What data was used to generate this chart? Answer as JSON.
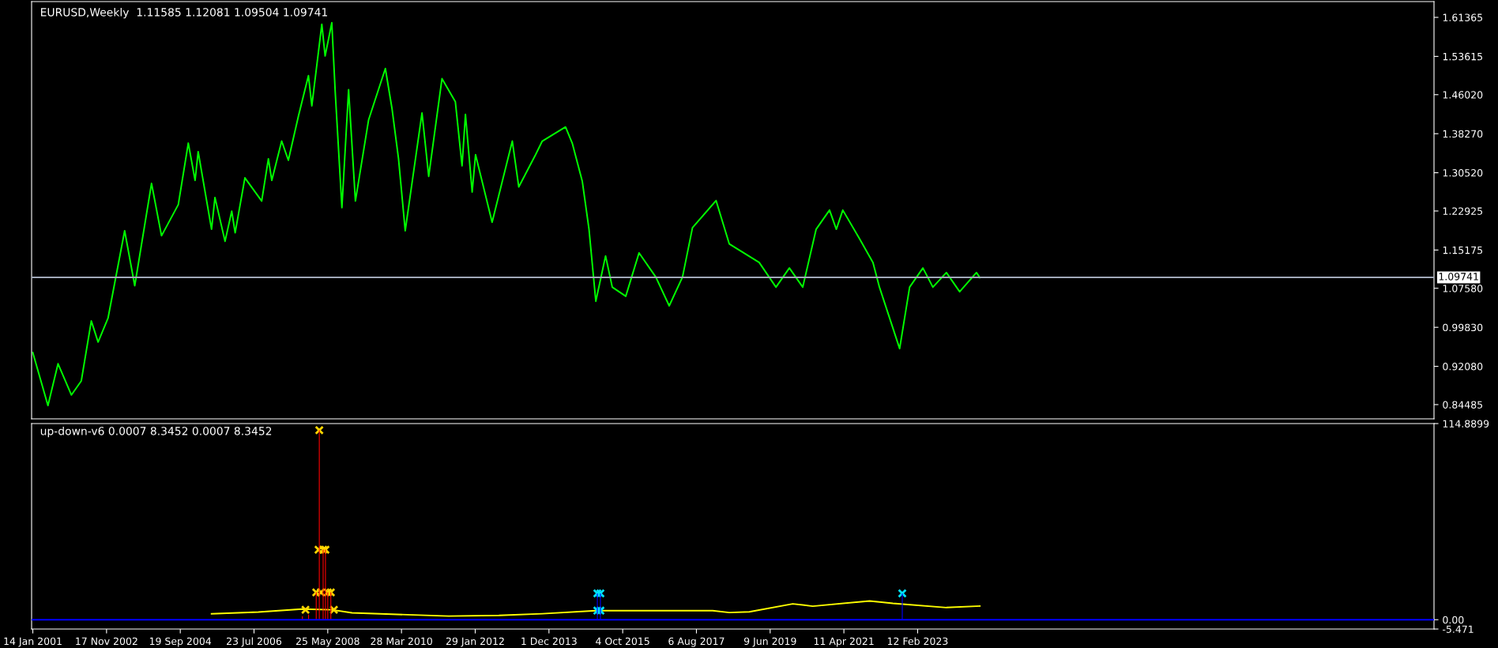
{
  "chart_data": [
    {
      "type": "line",
      "title": "EURUSD,Weekly  1.11585 1.12081 1.09504 1.09741",
      "xlim": [
        "2001-01-03",
        "2036-01-01"
      ],
      "ylim": [
        0.8166,
        1.645
      ],
      "yticks": [
        {
          "value": 1.61365,
          "label": "1.61365"
        },
        {
          "value": 1.53615,
          "label": "1.53615"
        },
        {
          "value": 1.4602,
          "label": "1.46020"
        },
        {
          "value": 1.3827,
          "label": "1.38270"
        },
        {
          "value": 1.3052,
          "label": "1.30520"
        },
        {
          "value": 1.22925,
          "label": "1.22925"
        },
        {
          "value": 1.15175,
          "label": "1.15175"
        },
        {
          "value": 1.0758,
          "label": "1.07580"
        },
        {
          "value": 0.9983,
          "label": "0.99830"
        },
        {
          "value": 0.9208,
          "label": "0.92080"
        },
        {
          "value": 0.84485,
          "label": "0.84485"
        }
      ],
      "tick_labels": "y",
      "grid": false,
      "legend": false,
      "ref_lines": [
        {
          "axis": "y",
          "value": 1.09741,
          "label": "1.09741",
          "color": "#a0a8b8"
        }
      ],
      "series": [
        {
          "color": "#00ff00",
          "x": [
            "2001-01-14",
            "2001-06",
            "2001-09",
            "2002-01",
            "2002-04",
            "2002-07",
            "2002-09",
            "2002-12",
            "2003-05",
            "2003-08",
            "2004-01",
            "2004-04",
            "2004-09",
            "2004-12",
            "2005-02",
            "2005-03",
            "2005-07",
            "2005-08",
            "2005-11",
            "2006-01",
            "2006-02",
            "2006-05",
            "2006-10",
            "2006-12",
            "2007-01",
            "2007-04",
            "2007-06",
            "2007-09",
            "2007-12",
            "2008-01",
            "2008-04",
            "2008-05",
            "2008-07",
            "2008-08",
            "2008-10",
            "2008-12",
            "2009-02",
            "2009-06",
            "2009-11",
            "2010-01",
            "2010-03",
            "2010-05",
            "2010-10",
            "2010-12",
            "2011-04",
            "2011-08",
            "2011-10",
            "2011-11",
            "2012-01",
            "2012-02",
            "2012-07",
            "2013-01",
            "2013-03",
            "2013-08",
            "2013-10",
            "2014-05",
            "2014-07",
            "2014-10",
            "2014-12",
            "2015-02",
            "2015-05",
            "2015-07",
            "2015-11",
            "2016-03",
            "2016-08",
            "2016-12",
            "2017-04",
            "2017-07",
            "2018-02",
            "2018-06",
            "2019-03",
            "2019-08",
            "2019-12",
            "2020-04",
            "2020-08",
            "2020-12",
            "2021-02",
            "2021-04",
            "2021-09",
            "2022-01",
            "2022-03",
            "2022-09",
            "2022-12",
            "2023-04",
            "2023-07",
            "2023-11",
            "2024-03",
            "2024-08",
            "2024-09"
          ],
          "values": [
            0.948,
            0.843,
            0.926,
            0.864,
            0.892,
            1.011,
            0.969,
            1.017,
            1.19,
            1.081,
            1.284,
            1.18,
            1.242,
            1.364,
            1.29,
            1.347,
            1.193,
            1.256,
            1.169,
            1.229,
            1.186,
            1.295,
            1.249,
            1.333,
            1.29,
            1.368,
            1.33,
            1.418,
            1.498,
            1.438,
            1.6,
            1.537,
            1.603,
            1.466,
            1.236,
            1.47,
            1.249,
            1.41,
            1.512,
            1.432,
            1.333,
            1.19,
            1.424,
            1.298,
            1.492,
            1.446,
            1.319,
            1.421,
            1.267,
            1.341,
            1.207,
            1.368,
            1.277,
            1.341,
            1.368,
            1.396,
            1.364,
            1.288,
            1.193,
            1.05,
            1.14,
            1.078,
            1.06,
            1.146,
            1.098,
            1.041,
            1.098,
            1.196,
            1.25,
            1.164,
            1.127,
            1.078,
            1.116,
            1.078,
            1.193,
            1.231,
            1.193,
            1.231,
            1.174,
            1.127,
            1.078,
            0.956,
            1.078,
            1.116,
            1.078,
            1.107,
            1.069,
            1.107,
            1.097
          ]
        }
      ]
    },
    {
      "type": "bar",
      "title": "up-down-v6 0.0007 8.3452 0.0007 8.3452",
      "xlim": [
        "2001-01-03",
        "2036-01-01"
      ],
      "ylim": [
        -5.471,
        114.8899
      ],
      "yticks": [
        {
          "value": 114.8899,
          "label": "114.8899"
        },
        {
          "value": 0,
          "label": "0.00"
        },
        {
          "value": -5.471,
          "label": "-5.471"
        }
      ],
      "xticks": [
        {
          "value": "2001-01-14",
          "label": "14 Jan 2001"
        },
        {
          "value": "2002-11-17",
          "label": "17 Nov 2002"
        },
        {
          "value": "2004-09-19",
          "label": "19 Sep 2004"
        },
        {
          "value": "2006-07-23",
          "label": "23 Jul 2006"
        },
        {
          "value": "2008-05-25",
          "label": "25 May 2008"
        },
        {
          "value": "2010-03-28",
          "label": "28 Mar 2010"
        },
        {
          "value": "2012-01-29",
          "label": "29 Jan 2012"
        },
        {
          "value": "2013-12-01",
          "label": "1 Dec 2013"
        },
        {
          "value": "2015-10-04",
          "label": "4 Oct 2015"
        },
        {
          "value": "2017-08-06",
          "label": "6 Aug 2017"
        },
        {
          "value": "2019-06-09",
          "label": "9 Jun 2019"
        },
        {
          "value": "2021-04-11",
          "label": "11 Apr 2021"
        },
        {
          "value": "2023-02-12",
          "label": "12 Feb 2023"
        }
      ],
      "grid": false,
      "legend": false,
      "ref_lines": [
        {
          "axis": "y",
          "value": 0,
          "color": "#0000ff"
        }
      ],
      "series": [
        {
          "type": "bar",
          "color": "#ff0000",
          "x": [
            "2007-10-07",
            "2007-12-02",
            "2008-02-10",
            "2008-03-09",
            "2008-04-13",
            "2008-05-04",
            "2008-05-25",
            "2008-06-22"
          ],
          "values": [
            2,
            3,
            16,
            111,
            41,
            41,
            16,
            16
          ]
        },
        {
          "type": "bar",
          "color": "#0000ff",
          "x": [
            "2015-02-15",
            "2015-03-15",
            "2022-09-25"
          ],
          "values": [
            15.4,
            15.4,
            15.4
          ]
        },
        {
          "type": "line",
          "color": "#ffff00",
          "x": [
            "2005-07",
            "2006-09",
            "2007-10",
            "2008-07",
            "2009-01",
            "2011-06",
            "2012-09",
            "2013-10",
            "2015-02",
            "2018-01",
            "2018-06",
            "2018-12",
            "2020-01",
            "2020-07",
            "2021-12",
            "2022-07",
            "2023-11",
            "2024-09"
          ],
          "values": [
            3.5,
            4.5,
            6.2,
            5.8,
            4.0,
            2.1,
            2.5,
            3.5,
            5.3,
            5.3,
            4.2,
            4.6,
            9.3,
            7.9,
            11.0,
            9.6,
            7.1,
            8.0
          ]
        },
        {
          "type": "scatter",
          "marker": "cross",
          "color": "#ffd700",
          "x": [
            "2007-11-04",
            "2008-03-09",
            "2008-03-02",
            "2008-04-13",
            "2008-05-04",
            "2008-02-10",
            "2008-03-23",
            "2008-05-25",
            "2008-06-22",
            "2008-07-20"
          ],
          "values": [
            5.8,
            111,
            41,
            41,
            41,
            16,
            16,
            16,
            16,
            5.8
          ]
        },
        {
          "type": "scatter",
          "marker": "cross",
          "color": "#00e5ff",
          "x": [
            "2015-02-15",
            "2015-03-15",
            "2015-02-15",
            "2015-03-15",
            "2022-09-25"
          ],
          "values": [
            15.4,
            15.4,
            5.3,
            5.3,
            15.4
          ]
        }
      ]
    }
  ]
}
